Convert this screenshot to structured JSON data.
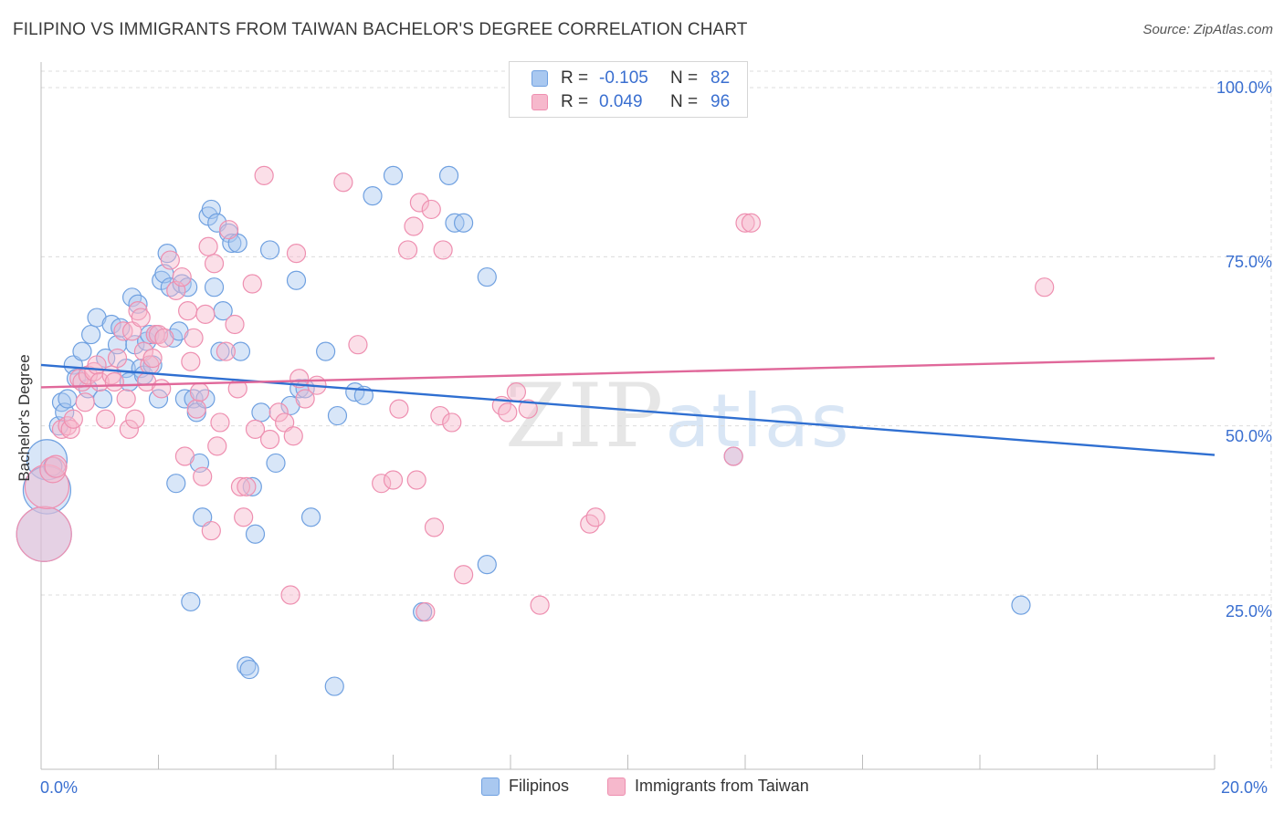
{
  "header": {
    "title": "FILIPINO VS IMMIGRANTS FROM TAIWAN BACHELOR'S DEGREE CORRELATION CHART",
    "source": "Source: ZipAtlas.com"
  },
  "watermark": {
    "zip": "ZIP",
    "atlas": "atlas"
  },
  "legend": {
    "rows": [
      {
        "r_label": "R =",
        "r_value": "-0.105",
        "n_label": "N =",
        "n_value": "82",
        "color": "#a9c8f0"
      },
      {
        "r_label": "R =",
        "r_value": "0.049",
        "n_label": "N =",
        "n_value": "96",
        "color": "#f6b8cc"
      }
    ]
  },
  "chart_data": {
    "type": "scatter",
    "title": "FILIPINO VS IMMIGRANTS FROM TAIWAN BACHELOR'S DEGREE CORRELATION CHART",
    "xlabel": "",
    "ylabel": "Bachelor's Degree",
    "xlim": [
      0,
      20
    ],
    "ylim": [
      0,
      105
    ],
    "x_ticks": [
      "0.0%",
      "20.0%"
    ],
    "y_ticks": [
      "25.0%",
      "50.0%",
      "75.0%",
      "100.0%"
    ],
    "y_tick_values": [
      25,
      50,
      75,
      100
    ],
    "grid": true,
    "legend_position": "bottom",
    "series": [
      {
        "name": "Filipinos",
        "color": "#6fa0e0",
        "fill": "#a9c8f0",
        "trend": [
          [
            0,
            59.0
          ],
          [
            20,
            45.7
          ]
        ],
        "points": [
          [
            0.1,
            45.0,
            22
          ],
          [
            0.1,
            40.5,
            26
          ],
          [
            0.05,
            34.0,
            30
          ],
          [
            0.2,
            44.0,
            10
          ],
          [
            0.3,
            50.0,
            10
          ],
          [
            0.35,
            53.5,
            10
          ],
          [
            0.4,
            52.0,
            10
          ],
          [
            0.45,
            54.0,
            10
          ],
          [
            0.55,
            59.0,
            10
          ],
          [
            0.6,
            57.0,
            10
          ],
          [
            0.7,
            61.0,
            10
          ],
          [
            0.8,
            55.5,
            10
          ],
          [
            0.85,
            63.5,
            10
          ],
          [
            0.95,
            66.0,
            10
          ],
          [
            1.05,
            54.0,
            10
          ],
          [
            1.1,
            60.0,
            10
          ],
          [
            1.2,
            65.0,
            10
          ],
          [
            1.3,
            62.0,
            10
          ],
          [
            1.35,
            64.5,
            10
          ],
          [
            1.45,
            58.5,
            10
          ],
          [
            1.5,
            56.5,
            10
          ],
          [
            1.55,
            69.0,
            10
          ],
          [
            1.6,
            62.0,
            10
          ],
          [
            1.65,
            68.0,
            10
          ],
          [
            1.7,
            58.5,
            10
          ],
          [
            1.75,
            57.5,
            10
          ],
          [
            1.8,
            62.5,
            10
          ],
          [
            1.85,
            63.5,
            10
          ],
          [
            1.9,
            59.0,
            10
          ],
          [
            1.95,
            63.5,
            10
          ],
          [
            2.0,
            54.0,
            10
          ],
          [
            2.05,
            71.5,
            10
          ],
          [
            2.1,
            72.5,
            10
          ],
          [
            2.15,
            75.5,
            10
          ],
          [
            2.2,
            70.5,
            10
          ],
          [
            2.25,
            63.0,
            10
          ],
          [
            2.3,
            41.5,
            10
          ],
          [
            2.35,
            64.0,
            10
          ],
          [
            2.4,
            71.0,
            10
          ],
          [
            2.45,
            54.0,
            10
          ],
          [
            2.5,
            70.5,
            10
          ],
          [
            2.55,
            24.0,
            10
          ],
          [
            2.6,
            54.0,
            10
          ],
          [
            2.65,
            52.0,
            10
          ],
          [
            2.7,
            44.5,
            10
          ],
          [
            2.75,
            36.5,
            10
          ],
          [
            2.8,
            54.0,
            10
          ],
          [
            2.85,
            81.0,
            10
          ],
          [
            2.9,
            82.0,
            10
          ],
          [
            2.95,
            70.5,
            10
          ],
          [
            3.0,
            80.0,
            10
          ],
          [
            3.05,
            61.0,
            10
          ],
          [
            3.1,
            67.0,
            10
          ],
          [
            3.2,
            78.5,
            10
          ],
          [
            3.25,
            77.0,
            10
          ],
          [
            3.35,
            77.0,
            10
          ],
          [
            3.4,
            61.0,
            10
          ],
          [
            3.5,
            14.5,
            10
          ],
          [
            3.55,
            14.0,
            10
          ],
          [
            3.6,
            41.0,
            10
          ],
          [
            3.65,
            34.0,
            10
          ],
          [
            3.75,
            52.0,
            10
          ],
          [
            3.9,
            76.0,
            10
          ],
          [
            4.0,
            44.5,
            10
          ],
          [
            4.25,
            53.0,
            10
          ],
          [
            4.35,
            71.5,
            10
          ],
          [
            4.4,
            55.5,
            10
          ],
          [
            4.5,
            55.5,
            10
          ],
          [
            4.6,
            36.5,
            10
          ],
          [
            4.85,
            61.0,
            10
          ],
          [
            5.0,
            11.5,
            10
          ],
          [
            5.05,
            51.5,
            10
          ],
          [
            5.35,
            55.0,
            10
          ],
          [
            5.5,
            54.5,
            10
          ],
          [
            5.65,
            84.0,
            10
          ],
          [
            6.0,
            87.0,
            10
          ],
          [
            6.5,
            22.5,
            10
          ],
          [
            6.95,
            87.0,
            10
          ],
          [
            7.05,
            80.0,
            10
          ],
          [
            7.2,
            80.0,
            10
          ],
          [
            7.6,
            29.5,
            10
          ],
          [
            7.6,
            72.0,
            10
          ],
          [
            11.8,
            45.5,
            10
          ],
          [
            16.7,
            23.5,
            10
          ]
        ]
      },
      {
        "name": "Immigrants from Taiwan",
        "color": "#ee8fb0",
        "fill": "#f6b8cc",
        "trend": [
          [
            0,
            55.7
          ],
          [
            20,
            60.0
          ]
        ],
        "points": [
          [
            0.05,
            34.0,
            30
          ],
          [
            0.1,
            41.0,
            24
          ],
          [
            0.2,
            43.5,
            14
          ],
          [
            0.25,
            44.0,
            12
          ],
          [
            0.35,
            49.5,
            10
          ],
          [
            0.45,
            50.0,
            10
          ],
          [
            0.5,
            49.5,
            10
          ],
          [
            0.55,
            51.0,
            10
          ],
          [
            0.65,
            57.0,
            10
          ],
          [
            0.7,
            56.5,
            10
          ],
          [
            0.75,
            53.5,
            10
          ],
          [
            0.8,
            57.5,
            10
          ],
          [
            0.9,
            58.0,
            10
          ],
          [
            0.95,
            59.0,
            10
          ],
          [
            1.0,
            56.5,
            10
          ],
          [
            1.1,
            51.0,
            10
          ],
          [
            1.2,
            57.5,
            10
          ],
          [
            1.25,
            56.5,
            10
          ],
          [
            1.3,
            60.0,
            10
          ],
          [
            1.4,
            64.0,
            10
          ],
          [
            1.45,
            54.0,
            10
          ],
          [
            1.5,
            49.5,
            10
          ],
          [
            1.55,
            64.0,
            10
          ],
          [
            1.6,
            51.0,
            10
          ],
          [
            1.65,
            67.0,
            10
          ],
          [
            1.7,
            66.0,
            10
          ],
          [
            1.75,
            61.0,
            10
          ],
          [
            1.8,
            56.5,
            10
          ],
          [
            1.85,
            59.0,
            10
          ],
          [
            1.9,
            60.0,
            10
          ],
          [
            1.95,
            63.5,
            10
          ],
          [
            2.0,
            63.5,
            10
          ],
          [
            2.05,
            55.5,
            10
          ],
          [
            2.1,
            63.0,
            10
          ],
          [
            2.2,
            74.5,
            10
          ],
          [
            2.3,
            70.0,
            10
          ],
          [
            2.4,
            72.0,
            10
          ],
          [
            2.45,
            45.5,
            10
          ],
          [
            2.5,
            67.0,
            10
          ],
          [
            2.55,
            59.5,
            10
          ],
          [
            2.6,
            63.0,
            10
          ],
          [
            2.65,
            52.5,
            10
          ],
          [
            2.7,
            55.0,
            10
          ],
          [
            2.75,
            42.5,
            10
          ],
          [
            2.8,
            66.5,
            10
          ],
          [
            2.85,
            76.5,
            10
          ],
          [
            2.9,
            34.5,
            10
          ],
          [
            2.95,
            74.0,
            10
          ],
          [
            3.0,
            47.0,
            10
          ],
          [
            3.05,
            50.5,
            10
          ],
          [
            3.15,
            61.0,
            10
          ],
          [
            3.2,
            79.0,
            10
          ],
          [
            3.3,
            65.0,
            10
          ],
          [
            3.35,
            55.5,
            10
          ],
          [
            3.4,
            41.0,
            10
          ],
          [
            3.45,
            36.5,
            10
          ],
          [
            3.5,
            41.0,
            10
          ],
          [
            3.6,
            71.0,
            10
          ],
          [
            3.65,
            49.5,
            10
          ],
          [
            3.8,
            87.0,
            10
          ],
          [
            3.9,
            48.0,
            10
          ],
          [
            4.05,
            52.0,
            10
          ],
          [
            4.15,
            50.5,
            10
          ],
          [
            4.25,
            25.0,
            10
          ],
          [
            4.3,
            48.5,
            10
          ],
          [
            4.35,
            75.5,
            10
          ],
          [
            4.4,
            57.0,
            10
          ],
          [
            4.5,
            54.0,
            10
          ],
          [
            4.7,
            56.0,
            10
          ],
          [
            5.15,
            86.0,
            10
          ],
          [
            5.4,
            62.0,
            10
          ],
          [
            5.8,
            41.5,
            10
          ],
          [
            6.0,
            42.0,
            10
          ],
          [
            6.1,
            52.5,
            10
          ],
          [
            6.25,
            76.0,
            10
          ],
          [
            6.35,
            79.5,
            10
          ],
          [
            6.4,
            42.0,
            10
          ],
          [
            6.45,
            83.0,
            10
          ],
          [
            6.55,
            22.5,
            10
          ],
          [
            6.65,
            82.0,
            10
          ],
          [
            6.7,
            35.0,
            10
          ],
          [
            6.8,
            51.5,
            10
          ],
          [
            6.85,
            76.0,
            10
          ],
          [
            7.0,
            50.5,
            10
          ],
          [
            7.2,
            28.0,
            10
          ],
          [
            7.85,
            53.0,
            10
          ],
          [
            7.95,
            52.0,
            10
          ],
          [
            8.1,
            55.0,
            10
          ],
          [
            8.3,
            52.5,
            10
          ],
          [
            8.5,
            23.5,
            10
          ],
          [
            9.35,
            35.5,
            10
          ],
          [
            9.45,
            36.5,
            10
          ],
          [
            11.8,
            45.5,
            10
          ],
          [
            12.0,
            80.0,
            10
          ],
          [
            12.1,
            80.0,
            10
          ],
          [
            17.1,
            70.5,
            10
          ]
        ]
      }
    ]
  }
}
